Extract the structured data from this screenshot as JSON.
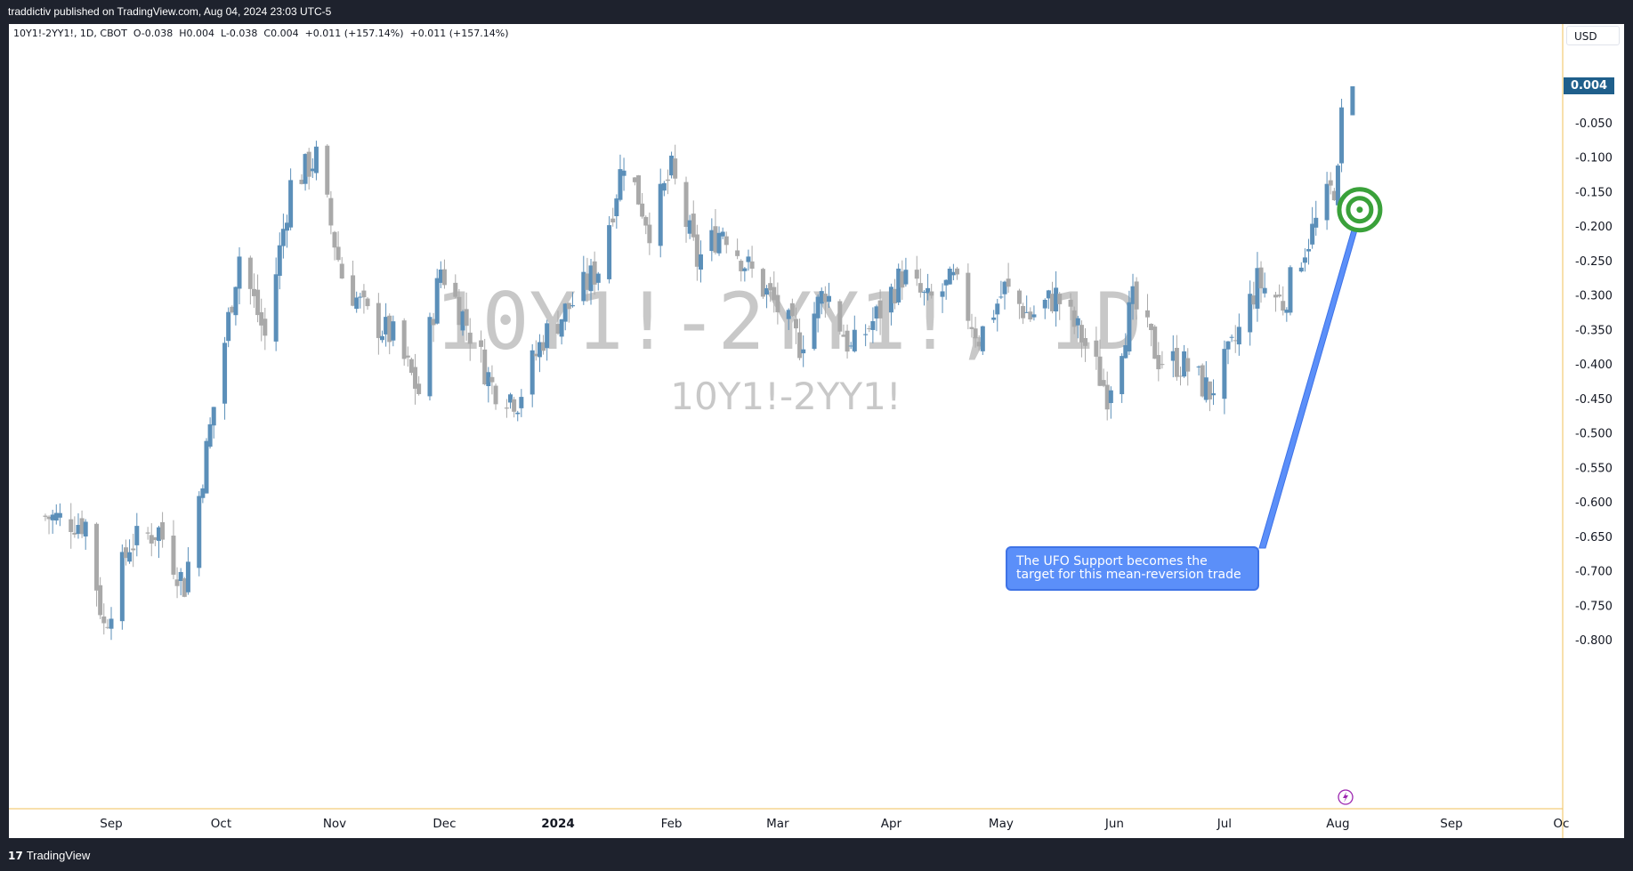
{
  "header": {
    "publisher_text": "traddictiv published on TradingView.com, Aug 04, 2024 23:03 UTC-5"
  },
  "footer": {
    "brand": "TradingView",
    "logo_glyph": "17"
  },
  "legend": {
    "symbol_text": "10Y1!-2YY1!, 1D, CBOT",
    "open": "O-0.038",
    "high": "H0.004",
    "low": "L-0.038",
    "close": "C0.004",
    "change": "+0.011 (+157.14%)",
    "change2": "+0.011 (+157.14%)"
  },
  "currency_button": "USD",
  "watermark": {
    "line1": "10Y1!-2YY1!, 1D",
    "line2": "10Y1!-2YY1!"
  },
  "annotation": {
    "line1": "The UFO Support becomes the",
    "line2": "target for this mean-reversion trade"
  },
  "colors": {
    "up": "#5b8fb9",
    "down": "#a9a9a9",
    "price_tag": "#1f5f8b",
    "target": "#3aa13a",
    "annotation": "#5b8ff9",
    "time_axis_line": "#f0c05a"
  },
  "chart_data": {
    "type": "candlestick",
    "symbol": "10Y1!-2YY1!",
    "interval": "1D",
    "exchange": "CBOT",
    "currency": "USD",
    "last_price": 0.004,
    "y_ticks": [
      -0.05,
      -0.1,
      -0.15,
      -0.2,
      -0.25,
      -0.3,
      -0.35,
      -0.4,
      -0.45,
      -0.5,
      -0.55,
      -0.6,
      -0.65,
      -0.7,
      -0.75,
      -0.8
    ],
    "y_tick_labels": [
      "-0.050",
      "-0.100",
      "-0.150",
      "-0.200",
      "-0.250",
      "-0.300",
      "-0.350",
      "-0.400",
      "-0.450",
      "-0.500",
      "-0.550",
      "-0.600",
      "-0.650",
      "-0.700",
      "-0.750",
      "-0.800"
    ],
    "x_labels": [
      {
        "label": "Sep",
        "date": "2023-09-01"
      },
      {
        "label": "Oct",
        "date": "2023-10-01"
      },
      {
        "label": "Nov",
        "date": "2023-11-01"
      },
      {
        "label": "Dec",
        "date": "2023-12-01"
      },
      {
        "label": "2024",
        "date": "2024-01-01",
        "bold": true
      },
      {
        "label": "Feb",
        "date": "2024-02-01"
      },
      {
        "label": "Mar",
        "date": "2024-03-01"
      },
      {
        "label": "Apr",
        "date": "2024-04-01"
      },
      {
        "label": "May",
        "date": "2024-05-01"
      },
      {
        "label": "Jun",
        "date": "2024-06-01"
      },
      {
        "label": "Jul",
        "date": "2024-07-01"
      },
      {
        "label": "Aug",
        "date": "2024-08-01"
      },
      {
        "label": "Sep",
        "date": "2024-09-01"
      },
      {
        "label": "Oc",
        "date": "2024-10-01"
      }
    ],
    "price_anchors": [
      {
        "date": "2023-08-14",
        "price": -0.62
      },
      {
        "date": "2023-08-25",
        "price": -0.63
      },
      {
        "date": "2023-08-30",
        "price": -0.78
      },
      {
        "date": "2023-09-06",
        "price": -0.66
      },
      {
        "date": "2023-09-14",
        "price": -0.64
      },
      {
        "date": "2023-09-21",
        "price": -0.72
      },
      {
        "date": "2023-09-29",
        "price": -0.46
      },
      {
        "date": "2023-10-06",
        "price": -0.24
      },
      {
        "date": "2023-10-13",
        "price": -0.36
      },
      {
        "date": "2023-10-20",
        "price": -0.14
      },
      {
        "date": "2023-10-27",
        "price": -0.1
      },
      {
        "date": "2023-11-03",
        "price": -0.27
      },
      {
        "date": "2023-11-10",
        "price": -0.33
      },
      {
        "date": "2023-11-17",
        "price": -0.36
      },
      {
        "date": "2023-11-24",
        "price": -0.44
      },
      {
        "date": "2023-11-30",
        "price": -0.26
      },
      {
        "date": "2023-12-07",
        "price": -0.34
      },
      {
        "date": "2023-12-14",
        "price": -0.43
      },
      {
        "date": "2023-12-21",
        "price": -0.45
      },
      {
        "date": "2023-12-28",
        "price": -0.36
      },
      {
        "date": "2024-01-05",
        "price": -0.31
      },
      {
        "date": "2024-01-12",
        "price": -0.26
      },
      {
        "date": "2024-01-19",
        "price": -0.1
      },
      {
        "date": "2024-01-26",
        "price": -0.2
      },
      {
        "date": "2024-02-01",
        "price": -0.12
      },
      {
        "date": "2024-02-08",
        "price": -0.25
      },
      {
        "date": "2024-02-15",
        "price": -0.2
      },
      {
        "date": "2024-02-22",
        "price": -0.26
      },
      {
        "date": "2024-02-29",
        "price": -0.31
      },
      {
        "date": "2024-03-07",
        "price": -0.37
      },
      {
        "date": "2024-03-14",
        "price": -0.29
      },
      {
        "date": "2024-03-21",
        "price": -0.38
      },
      {
        "date": "2024-03-28",
        "price": -0.33
      },
      {
        "date": "2024-04-04",
        "price": -0.27
      },
      {
        "date": "2024-04-11",
        "price": -0.31
      },
      {
        "date": "2024-04-18",
        "price": -0.28
      },
      {
        "date": "2024-04-25",
        "price": -0.36
      },
      {
        "date": "2024-05-02",
        "price": -0.29
      },
      {
        "date": "2024-05-09",
        "price": -0.33
      },
      {
        "date": "2024-05-16",
        "price": -0.3
      },
      {
        "date": "2024-05-23",
        "price": -0.36
      },
      {
        "date": "2024-05-30",
        "price": -0.44
      },
      {
        "date": "2024-06-06",
        "price": -0.31
      },
      {
        "date": "2024-06-13",
        "price": -0.39
      },
      {
        "date": "2024-06-20",
        "price": -0.4
      },
      {
        "date": "2024-06-27",
        "price": -0.44
      },
      {
        "date": "2024-07-03",
        "price": -0.38
      },
      {
        "date": "2024-07-10",
        "price": -0.28
      },
      {
        "date": "2024-07-17",
        "price": -0.31
      },
      {
        "date": "2024-07-22",
        "price": -0.24
      },
      {
        "date": "2024-07-29",
        "price": -0.16
      },
      {
        "date": "2024-08-01",
        "price": -0.13
      },
      {
        "date": "2024-08-02",
        "price": -0.04
      },
      {
        "date": "2024-08-05",
        "price": 0.004
      }
    ],
    "target": {
      "date": "2024-08-05",
      "price": -0.175
    },
    "annotation_text": "The UFO Support becomes the target for this mean-reversion trade"
  }
}
